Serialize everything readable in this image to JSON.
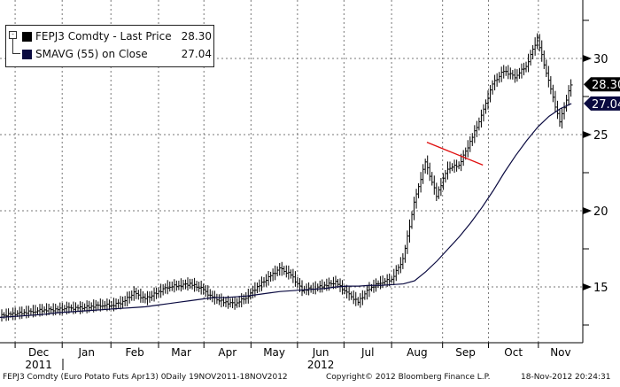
{
  "legend": {
    "price_label": "FEPJ3 Comdty - Last Price",
    "price_value": "28.30",
    "sma_label": "SMAVG (55) on Close",
    "sma_value": "27.04"
  },
  "colors": {
    "price": "#000000",
    "sma": "#0a0a40",
    "trend": "#e01010",
    "grid": "#777777"
  },
  "footer": {
    "left": "FEPJ3 Comdty (Euro Potato Futs  Apr13) 0Daily 19NOV2011-18NOV2012",
    "center": "Copyright© 2012 Bloomberg Finance L.P.",
    "right": "18-Nov-2012 20:24:31"
  },
  "chart_data": {
    "type": "line",
    "title": "FEPJ3 Comdty - Last Price",
    "ylim": [
      11.3,
      33.8
    ],
    "yticks": [
      15,
      20,
      25,
      30
    ],
    "month_labels": [
      "Dec",
      "Jan",
      "Feb",
      "Mar",
      "Apr",
      "May",
      "Jun",
      "Jul",
      "Aug",
      "Sep",
      "Oct",
      "Nov"
    ],
    "month_start_week": [
      1.35,
      5.55,
      9.9,
      14.15,
      18.2,
      22.4,
      26.55,
      30.7,
      34.95,
      39.5,
      43.6,
      48.05
    ],
    "year_labels": [
      {
        "label": "2011",
        "month": 0
      },
      {
        "label": "2012",
        "month": 6
      }
    ],
    "x_unit": "week index from 19NOV2011",
    "series": [
      {
        "name": "FEPJ3 Comdty - Last Price",
        "values": [
          13.1,
          13.2,
          13.3,
          13.4,
          13.5,
          13.5,
          13.6,
          13.6,
          13.7,
          13.8,
          13.8,
          14.0,
          14.6,
          14.2,
          14.6,
          15.0,
          15.1,
          15.2,
          14.9,
          14.3,
          14.0,
          13.9,
          14.3,
          15.0,
          15.6,
          16.2,
          15.8,
          14.8,
          14.9,
          15.1,
          15.3,
          14.6,
          14.0,
          14.9,
          15.3,
          15.5,
          16.8,
          20.5,
          23.2,
          21.0,
          22.8,
          23.0,
          24.5,
          26.2,
          28.3,
          29.2,
          28.8,
          29.5,
          31.3,
          28.5,
          25.8,
          28.3
        ]
      },
      {
        "name": "SMAVG (55) on Close",
        "values": [
          13.0,
          13.05,
          13.1,
          13.15,
          13.2,
          13.3,
          13.35,
          13.4,
          13.45,
          13.5,
          13.55,
          13.6,
          13.65,
          13.7,
          13.8,
          13.9,
          14.0,
          14.1,
          14.2,
          14.3,
          14.3,
          14.35,
          14.4,
          14.5,
          14.6,
          14.7,
          14.75,
          14.8,
          14.85,
          14.9,
          15.0,
          15.05,
          15.05,
          15.1,
          15.1,
          15.15,
          15.2,
          15.4,
          16.0,
          16.7,
          17.5,
          18.3,
          19.2,
          20.2,
          21.3,
          22.5,
          23.6,
          24.6,
          25.5,
          26.2,
          26.7,
          27.04
        ]
      }
    ],
    "trendline": {
      "from": [
        38.1,
        24.5
      ],
      "to": [
        43.1,
        23.0
      ]
    },
    "last_labels": [
      {
        "value": 28.3,
        "text": "28.30"
      },
      {
        "value": 27.04,
        "text": "27.04"
      }
    ]
  }
}
